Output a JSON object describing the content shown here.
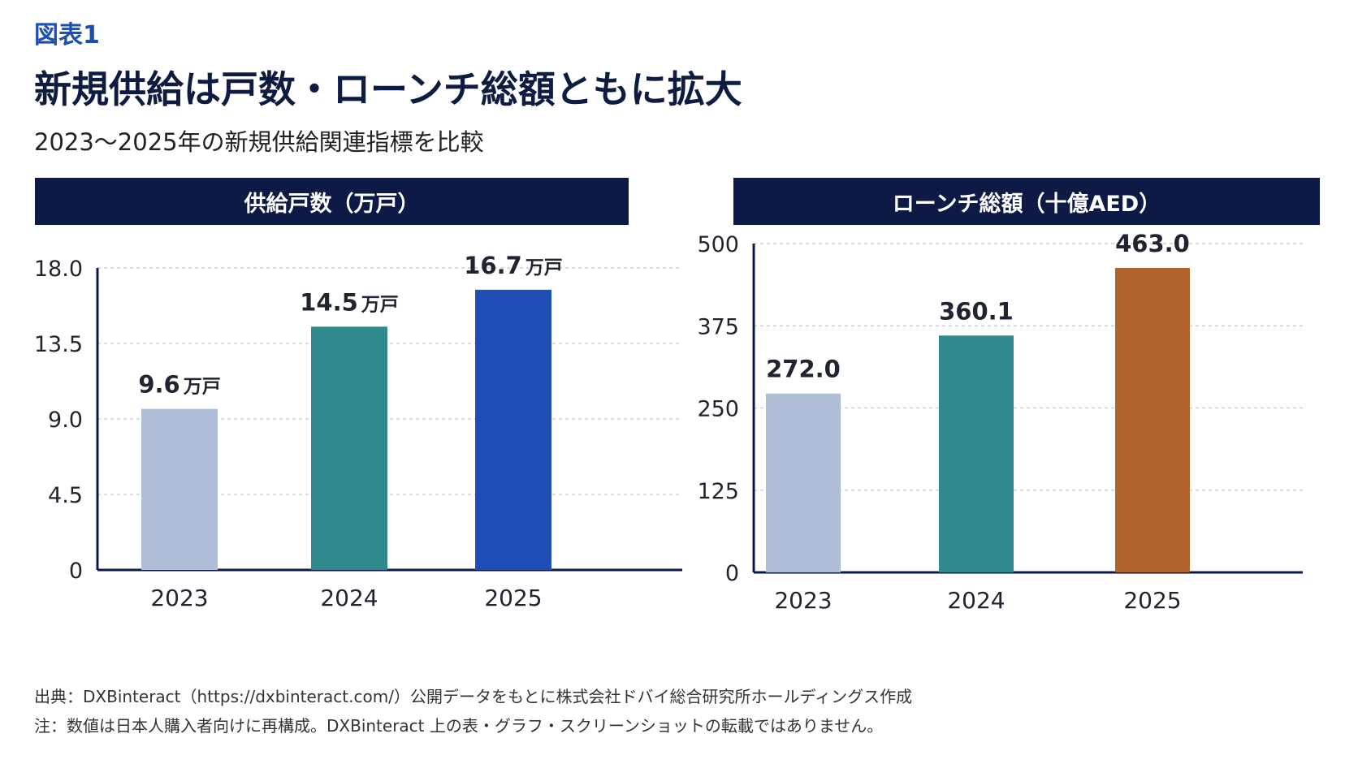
{
  "header": {
    "figure_label": "図表1",
    "title": "新規供給は戸数・ローンチ総額ともに拡大",
    "subtitle": "2023〜2025年の新規供給関連指標を比較"
  },
  "chart_data": [
    {
      "type": "bar",
      "title": "供給戸数（万戸）",
      "categories": [
        "2023",
        "2024",
        "2025"
      ],
      "values": [
        9.6,
        14.5,
        16.7
      ],
      "value_unit": "万戸",
      "value_labels": [
        "9.6",
        "14.5",
        "16.7"
      ],
      "ylim": [
        0,
        18
      ],
      "yticks": [
        0,
        4.5,
        9.0,
        13.5,
        18.0
      ],
      "ytick_labels": [
        "0",
        "4.5",
        "9.0",
        "13.5",
        "18.0"
      ],
      "grid": true,
      "colors": [
        "#b0bdd6",
        "#2e8a8c",
        "#1e4db6"
      ]
    },
    {
      "type": "bar",
      "title": "ローンチ総額（十億AED）",
      "categories": [
        "2023",
        "2024",
        "2025"
      ],
      "values": [
        272.0,
        360.1,
        463.0
      ],
      "value_unit": "",
      "value_labels": [
        "272.0",
        "360.1",
        "463.0"
      ],
      "ylim": [
        0,
        500
      ],
      "yticks": [
        0,
        125,
        250,
        375,
        500
      ],
      "ytick_labels": [
        "0",
        "125",
        "250",
        "375",
        "500"
      ],
      "grid": true,
      "colors": [
        "#b0bdd6",
        "#2e8a8c",
        "#b0642c"
      ]
    }
  ],
  "footer": {
    "source": "出典：DXBinteract（https://dxbinteract.com/）公開データをもとに株式会社ドバイ総合研究所ホールディングス作成",
    "note": "注：数値は日本人購入者向けに再構成。DXBinteract 上の表・グラフ・スクリーンショットの転載ではありません。"
  }
}
